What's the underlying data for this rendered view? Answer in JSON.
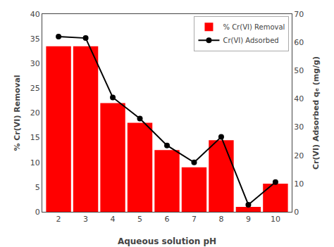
{
  "chart_data": {
    "type": "bar",
    "xlabel": "Aqueous solution pH",
    "ylabel": "% Cr(VI) Removal",
    "y2label": "Cr(VI) Adsorbed qₑ (mg/g)",
    "x": [
      2,
      3,
      4,
      5,
      6,
      7,
      8,
      9,
      10
    ],
    "series": [
      {
        "name": "% Cr(VI) Removal",
        "type": "bar",
        "color": "#FF0000",
        "values": [
          33.5,
          33.5,
          22.0,
          18.0,
          12.5,
          9.0,
          14.5,
          1.0,
          5.7
        ]
      },
      {
        "name": "Cr(VI) Adsorbed",
        "type": "line",
        "axis": "y2",
        "color": "#000000",
        "marker": "circle",
        "values": [
          62.0,
          61.5,
          40.5,
          33.0,
          23.5,
          17.5,
          26.5,
          2.5,
          10.5
        ]
      }
    ],
    "xlim": [
      1.4,
      10.6
    ],
    "xticks": [
      2,
      3,
      4,
      5,
      6,
      7,
      8,
      9,
      10
    ],
    "ylim": [
      0,
      40
    ],
    "yticks": [
      0,
      5,
      10,
      15,
      20,
      25,
      30,
      35,
      40
    ],
    "y2lim": [
      0,
      70
    ],
    "y2ticks": [
      0,
      10,
      20,
      30,
      40,
      50,
      60,
      70
    ],
    "legend": "upper right",
    "grid": false
  }
}
